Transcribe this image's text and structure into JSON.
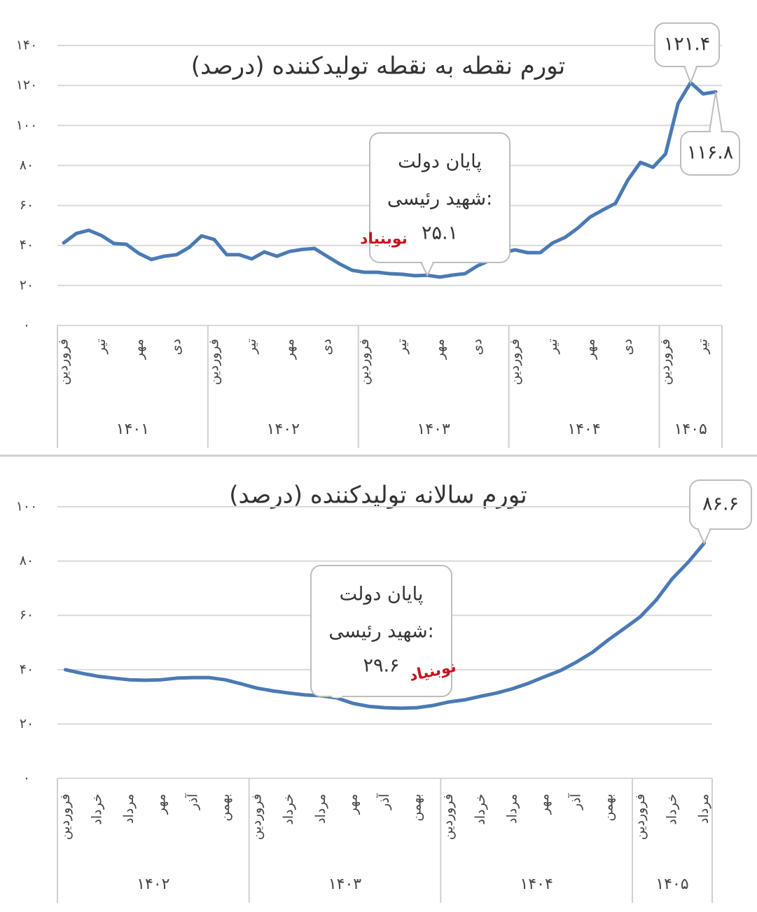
{
  "chart_data": [
    {
      "type": "line",
      "title": "تورم نقطه به نقطه تولیدکننده (درصد)",
      "categories": [
        "فروردین",
        null,
        null,
        "تیر",
        null,
        null,
        "مهر",
        null,
        null,
        "دی",
        null,
        null,
        "فروردین",
        null,
        null,
        "تیر",
        null,
        null,
        "مهر",
        null,
        null,
        "دی",
        null,
        null,
        "فروردین",
        null,
        null,
        "تیر",
        null,
        null,
        "مهر",
        null,
        null,
        "دی",
        null,
        null,
        "فروردین",
        null,
        null,
        "تیر",
        null,
        null,
        "مهر",
        null,
        null,
        "دی",
        null,
        null,
        "فروردین",
        null,
        null,
        "تیر",
        null
      ],
      "groups": [
        "۱۴۰۱",
        "۱۴۰۲",
        "۱۴۰۳",
        "۱۴۰۴",
        "۱۴۰۵"
      ],
      "series": [
        {
          "color": "#4a7ab4",
          "values": [
            41.3,
            46,
            47.6,
            45,
            41,
            40.6,
            36,
            33,
            34.6,
            35.4,
            39,
            44.8,
            43,
            35.4,
            35.4,
            33.3,
            36.8,
            34.6,
            37,
            38,
            38.5,
            34.6,
            30.8,
            27.6,
            26.6,
            26.6,
            25.9,
            25.6,
            24.9,
            25.1,
            24.2,
            25.2,
            25.9,
            29.8,
            32.6,
            36.4,
            37.8,
            36.4,
            36.4,
            41.3,
            44.1,
            48.7,
            54.3,
            57.8,
            61,
            72.8,
            81.6,
            79.1,
            85.8,
            111,
            121.4,
            115.8,
            116.8
          ],
          "value_labels": [
            null,
            null,
            null,
            null,
            null,
            null,
            null,
            null,
            null,
            null,
            null,
            null,
            null,
            null,
            null,
            null,
            null,
            null,
            null,
            null,
            null,
            null,
            null,
            null,
            null,
            null,
            null,
            null,
            null,
            "۲۵.۱",
            null,
            null,
            null,
            null,
            null,
            null,
            null,
            null,
            null,
            null,
            null,
            null,
            null,
            null,
            null,
            null,
            null,
            null,
            null,
            null,
            "۱۲۱.۴",
            null,
            "۱۱۶.۸"
          ]
        }
      ],
      "ylim": [
        0,
        140
      ],
      "yticks": [
        {
          "value": 0,
          "label": "۰"
        },
        {
          "value": 20,
          "label": "۲۰"
        },
        {
          "value": 40,
          "label": "۴۰"
        },
        {
          "value": 60,
          "label": "۶۰"
        },
        {
          "value": 80,
          "label": "۸۰"
        },
        {
          "value": 100,
          "label": "۱۰۰"
        },
        {
          "value": 120,
          "label": "۱۲۰"
        },
        {
          "value": 140,
          "label": "۱۴۰"
        }
      ],
      "grid": true,
      "annotation": [
        "پایان دولت",
        "شهید رئیسی:"
      ],
      "watermark": "نوبنیاد"
    },
    {
      "type": "line",
      "title": "تورم سالانه تولیدکننده (درصد)",
      "categories": [
        "فروردین",
        null,
        "خرداد",
        null,
        "مرداد",
        null,
        "مهر",
        null,
        "آذر",
        null,
        "بهمن",
        null,
        "فروردین",
        null,
        "خرداد",
        null,
        "مرداد",
        null,
        "مهر",
        null,
        "آذر",
        null,
        "بهمن",
        null,
        "فروردین",
        null,
        "خرداد",
        null,
        "مرداد",
        null,
        "مهر",
        null,
        "آذر",
        null,
        "بهمن",
        null,
        "فروردین",
        null,
        "خرداد",
        null,
        "مرداد"
      ],
      "groups": [
        "۱۴۰۲",
        "۱۴۰۳",
        "۱۴۰۴",
        "۱۴۰۵"
      ],
      "series": [
        {
          "color": "#4a7ab4",
          "values": [
            40,
            38.7,
            37.6,
            36.9,
            36.3,
            36.1,
            36.3,
            36.9,
            37.1,
            37.1,
            36.3,
            34.8,
            33.2,
            32.2,
            31.4,
            30.7,
            30.4,
            29.6,
            27.6,
            26.5,
            26,
            25.8,
            26,
            26.8,
            28.1,
            28.9,
            30.2,
            31.4,
            33,
            35,
            37.4,
            39.7,
            42.8,
            46.4,
            51,
            55.2,
            59.5,
            65.7,
            73.5,
            79.6,
            86.6
          ],
          "value_labels": [
            null,
            null,
            null,
            null,
            null,
            null,
            null,
            null,
            null,
            null,
            null,
            null,
            null,
            null,
            null,
            null,
            null,
            "۲۹.۶",
            null,
            null,
            null,
            null,
            null,
            null,
            null,
            null,
            null,
            null,
            null,
            null,
            null,
            null,
            null,
            null,
            null,
            null,
            null,
            null,
            null,
            null,
            "۸۶.۶"
          ]
        }
      ],
      "ylim": [
        0,
        100
      ],
      "yticks": [
        {
          "value": 0,
          "label": "۰"
        },
        {
          "value": 20,
          "label": "۲۰"
        },
        {
          "value": 40,
          "label": "۴۰"
        },
        {
          "value": 60,
          "label": "۶۰"
        },
        {
          "value": 80,
          "label": "۸۰"
        },
        {
          "value": 100,
          "label": "۱۰۰"
        }
      ],
      "grid": true,
      "annotation": [
        "پایان دولت",
        "شهید رئیسی:"
      ],
      "watermark": "نوبنیاد"
    }
  ]
}
